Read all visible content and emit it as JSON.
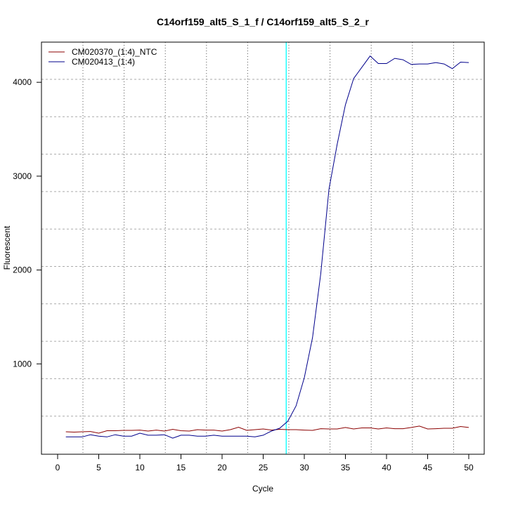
{
  "chart_data": {
    "type": "line",
    "title": "C14orf159_alt5_S_1_f / C14orf159_alt5_S_2_r",
    "xlabel": "Cycle",
    "ylabel": "Fluorescent",
    "xlim": [
      -1.9,
      51.9
    ],
    "ylim": [
      40,
      4430
    ],
    "x_ticks": [
      0,
      5,
      10,
      15,
      20,
      25,
      30,
      35,
      40,
      45,
      50
    ],
    "y_ticks": [
      1000,
      2000,
      3000,
      4000
    ],
    "grid": true,
    "legend_position": "top-left",
    "threshold_line": {
      "x": 27.8,
      "color": "#00ffff"
    },
    "x": [
      1,
      2,
      3,
      4,
      5,
      6,
      7,
      8,
      9,
      10,
      11,
      12,
      13,
      14,
      15,
      16,
      17,
      18,
      19,
      20,
      21,
      22,
      23,
      24,
      25,
      26,
      27,
      28,
      29,
      30,
      31,
      32,
      33,
      34,
      35,
      36,
      37,
      38,
      39,
      40,
      41,
      42,
      43,
      44,
      45,
      46,
      47,
      48,
      49,
      50
    ],
    "series": [
      {
        "name": "CM020370_(1:4)_NTC",
        "color": "#8b0000",
        "values": [
          277,
          273,
          277,
          280,
          262,
          288,
          288,
          292,
          292,
          295,
          284,
          295,
          284,
          303,
          288,
          284,
          299,
          295,
          295,
          284,
          299,
          325,
          292,
          299,
          307,
          295,
          303,
          299,
          299,
          295,
          292,
          310,
          307,
          307,
          322,
          307,
          318,
          318,
          307,
          318,
          310,
          310,
          322,
          337,
          307,
          310,
          314,
          314,
          333,
          322
        ]
      },
      {
        "name": "CM020413_(1:4)",
        "color": "#00008b",
        "values": [
          222,
          222,
          222,
          245,
          230,
          222,
          245,
          230,
          230,
          262,
          240,
          240,
          245,
          209,
          240,
          240,
          230,
          230,
          240,
          230,
          230,
          230,
          230,
          222,
          240,
          284,
          314,
          390,
          553,
          853,
          1280,
          1960,
          2860,
          3340,
          3760,
          4040,
          4160,
          4280,
          4200,
          4200,
          4255,
          4240,
          4190,
          4195,
          4195,
          4210,
          4195,
          4145,
          4215,
          4210
        ]
      }
    ]
  }
}
